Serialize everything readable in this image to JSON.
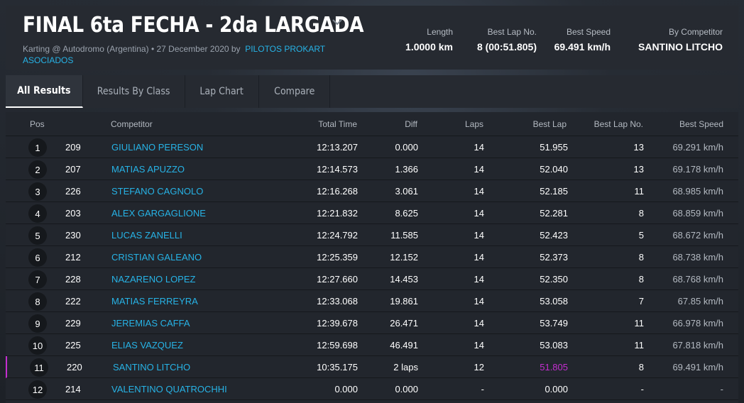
{
  "event": {
    "title": "FINAL 6ta FECHA - 2da LARGADA",
    "meta_prefix": "Karting @ Autodromo (Argentina) • 27 December 2020 by",
    "organizer": "PILOTOS PROKART ASOCIADOS"
  },
  "stats": [
    {
      "label": "Length",
      "value": "1.0000 km"
    },
    {
      "label": "Best Lap No.",
      "value": "8 (00:51.805)"
    },
    {
      "label": "Best Speed",
      "value": "69.491 km/h"
    },
    {
      "label": "By Competitor",
      "value": "SANTINO LITCHO"
    }
  ],
  "tabs": [
    "All Results",
    "Results By Class",
    "Lap Chart",
    "Compare"
  ],
  "columns": {
    "pos": "Pos",
    "competitor": "Competitor",
    "total_time": "Total Time",
    "diff": "Diff",
    "laps": "Laps",
    "best_lap": "Best Lap",
    "best_lap_no": "Best Lap No.",
    "best_speed": "Best Speed"
  },
  "rows": [
    {
      "pos": "1",
      "num": "209",
      "name": "GIULIANO PERESON",
      "total": "12:13.207",
      "diff": "0.000",
      "laps": "14",
      "best": "51.955",
      "best_no": "13",
      "speed": "69.291 km/h"
    },
    {
      "pos": "2",
      "num": "207",
      "name": "MATIAS APUZZO",
      "total": "12:14.573",
      "diff": "1.366",
      "laps": "14",
      "best": "52.040",
      "best_no": "13",
      "speed": "69.178 km/h"
    },
    {
      "pos": "3",
      "num": "226",
      "name": "STEFANO CAGNOLO",
      "total": "12:16.268",
      "diff": "3.061",
      "laps": "14",
      "best": "52.185",
      "best_no": "11",
      "speed": "68.985 km/h"
    },
    {
      "pos": "4",
      "num": "203",
      "name": "ALEX GARGAGLIONE",
      "total": "12:21.832",
      "diff": "8.625",
      "laps": "14",
      "best": "52.281",
      "best_no": "8",
      "speed": "68.859 km/h"
    },
    {
      "pos": "5",
      "num": "230",
      "name": "LUCAS ZANELLI",
      "total": "12:24.792",
      "diff": "11.585",
      "laps": "14",
      "best": "52.423",
      "best_no": "5",
      "speed": "68.672 km/h"
    },
    {
      "pos": "6",
      "num": "212",
      "name": "CRISTIAN GALEANO",
      "total": "12:25.359",
      "diff": "12.152",
      "laps": "14",
      "best": "52.373",
      "best_no": "8",
      "speed": "68.738 km/h"
    },
    {
      "pos": "7",
      "num": "228",
      "name": "NAZARENO LOPEZ",
      "total": "12:27.660",
      "diff": "14.453",
      "laps": "14",
      "best": "52.350",
      "best_no": "8",
      "speed": "68.768 km/h"
    },
    {
      "pos": "8",
      "num": "222",
      "name": "MATIAS FERREYRA",
      "total": "12:33.068",
      "diff": "19.861",
      "laps": "14",
      "best": "53.058",
      "best_no": "7",
      "speed": "67.85 km/h"
    },
    {
      "pos": "9",
      "num": "229",
      "name": "JEREMIAS CAFFA",
      "total": "12:39.678",
      "diff": "26.471",
      "laps": "14",
      "best": "53.749",
      "best_no": "11",
      "speed": "66.978 km/h"
    },
    {
      "pos": "10",
      "num": "225",
      "name": "ELIAS VAZQUEZ",
      "total": "12:59.698",
      "diff": "46.491",
      "laps": "14",
      "best": "53.083",
      "best_no": "11",
      "speed": "67.818 km/h"
    },
    {
      "pos": "11",
      "num": "220",
      "name": "SANTINO LITCHO",
      "total": "10:35.175",
      "diff": "2 laps",
      "laps": "12",
      "best": "51.805",
      "best_no": "8",
      "speed": "69.491 km/h",
      "overall_best": true
    },
    {
      "pos": "12",
      "num": "214",
      "name": "VALENTINO QUATROCHHI",
      "total": "0.000",
      "diff": "0.000",
      "laps": "-",
      "best": "0.000",
      "best_no": "-",
      "speed": "-"
    }
  ],
  "colors": {
    "accent": "#27b3e6",
    "overall_best": "#c42ed0",
    "panel": "#262a31",
    "row_bg": "#22262d"
  },
  "icons": {
    "title_dropdown": "chevron-down-icon"
  }
}
